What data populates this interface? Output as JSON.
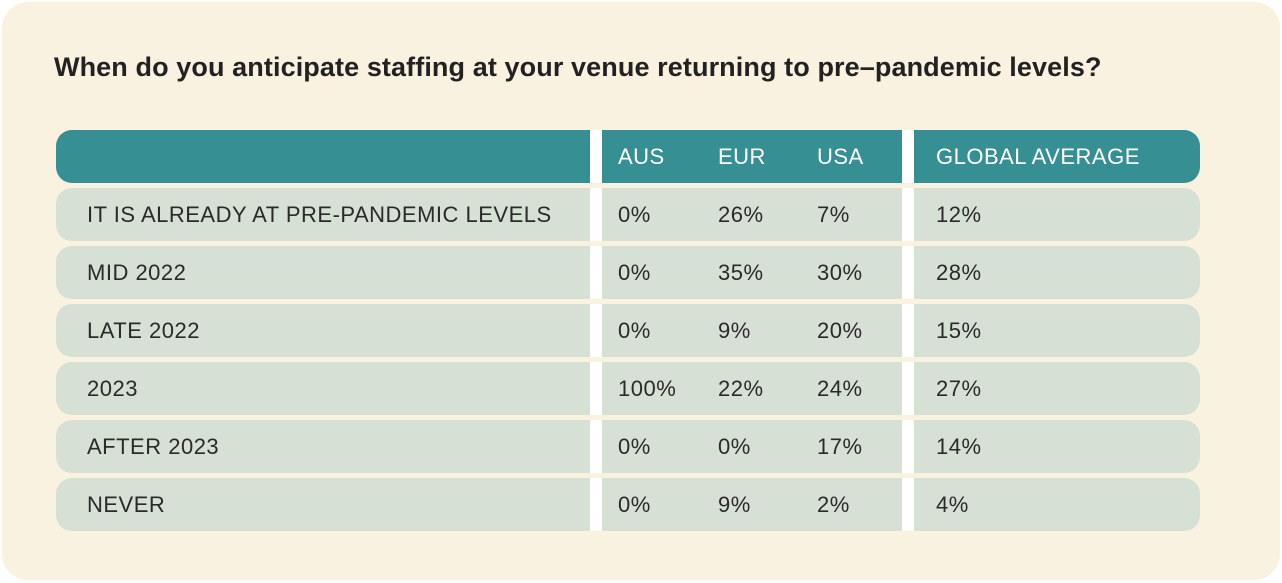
{
  "title": "When do you anticipate staffing at your venue returning to pre–pandemic levels?",
  "chart_data": {
    "type": "table",
    "title": "When do you anticipate staffing at your venue returning to pre–pandemic levels?",
    "columns": [
      "",
      "AUS",
      "EUR",
      "USA",
      "GLOBAL AVERAGE"
    ],
    "rows": [
      {
        "label": "IT IS ALREADY AT PRE-PANDEMIC LEVELS",
        "aus": "0%",
        "eur": "26%",
        "usa": "7%",
        "global": "12%"
      },
      {
        "label": "MID 2022",
        "aus": "0%",
        "eur": "35%",
        "usa": "30%",
        "global": "28%"
      },
      {
        "label": "LATE 2022",
        "aus": "0%",
        "eur": "9%",
        "usa": "20%",
        "global": "15%"
      },
      {
        "label": "2023",
        "aus": "100%",
        "eur": "22%",
        "usa": "24%",
        "global": "27%"
      },
      {
        "label": "AFTER 2023",
        "aus": "0%",
        "eur": "0%",
        "usa": "17%",
        "global": "14%"
      },
      {
        "label": "NEVER",
        "aus": "0%",
        "eur": "9%",
        "usa": "2%",
        "global": "4%"
      }
    ]
  },
  "colors": {
    "background": "#f9f2e0",
    "header": "#358f93",
    "row": "#d6e0d5",
    "separator": "#ffffff"
  }
}
